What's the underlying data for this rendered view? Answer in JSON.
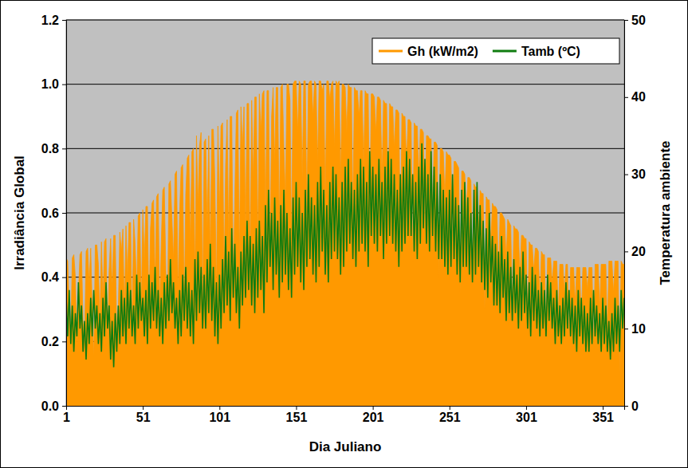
{
  "chart_data": {
    "type": "line",
    "xlabel": "Dia Juliano",
    "ylabel": "Irradiância Global",
    "y2label": "Temperatura ambiente",
    "xlim": [
      1,
      365
    ],
    "xticks": [
      1,
      51,
      101,
      151,
      201,
      251,
      301,
      351
    ],
    "ylim": [
      0,
      1.2
    ],
    "yticks": [
      {
        "value": 0,
        "label": "0.0"
      },
      0.2,
      0.4,
      0.6,
      0.8,
      {
        "value": 1,
        "label": "1.0"
      },
      1.2
    ],
    "y2lim": [
      0,
      50
    ],
    "y2ticks": [
      0,
      10,
      20,
      30,
      40,
      50
    ],
    "grid": true,
    "legend": "top-right",
    "x": [
      1,
      2,
      3,
      4,
      5,
      6,
      7,
      8,
      9,
      10,
      11,
      12,
      13,
      14,
      15,
      16,
      17,
      18,
      19,
      20,
      21,
      22,
      23,
      24,
      25,
      26,
      27,
      28,
      29,
      30,
      31,
      32,
      33,
      34,
      35,
      36,
      37,
      38,
      39,
      40,
      41,
      42,
      43,
      44,
      45,
      46,
      47,
      48,
      49,
      50,
      51,
      52,
      53,
      54,
      55,
      56,
      57,
      58,
      59,
      60,
      61,
      62,
      63,
      64,
      65,
      66,
      67,
      68,
      69,
      70,
      71,
      72,
      73,
      74,
      75,
      76,
      77,
      78,
      79,
      80,
      81,
      82,
      83,
      84,
      85,
      86,
      87,
      88,
      89,
      90,
      91,
      92,
      93,
      94,
      95,
      96,
      97,
      98,
      99,
      100,
      101,
      102,
      103,
      104,
      105,
      106,
      107,
      108,
      109,
      110,
      111,
      112,
      113,
      114,
      115,
      116,
      117,
      118,
      119,
      120,
      121,
      122,
      123,
      124,
      125,
      126,
      127,
      128,
      129,
      130,
      131,
      132,
      133,
      134,
      135,
      136,
      137,
      138,
      139,
      140,
      141,
      142,
      143,
      144,
      145,
      146,
      147,
      148,
      149,
      150,
      151,
      152,
      153,
      154,
      155,
      156,
      157,
      158,
      159,
      160,
      161,
      162,
      163,
      164,
      165,
      166,
      167,
      168,
      169,
      170,
      171,
      172,
      173,
      174,
      175,
      176,
      177,
      178,
      179,
      180,
      181,
      182,
      183,
      184,
      185,
      186,
      187,
      188,
      189,
      190,
      191,
      192,
      193,
      194,
      195,
      196,
      197,
      198,
      199,
      200,
      201,
      202,
      203,
      204,
      205,
      206,
      207,
      208,
      209,
      210,
      211,
      212,
      213,
      214,
      215,
      216,
      217,
      218,
      219,
      220,
      221,
      222,
      223,
      224,
      225,
      226,
      227,
      228,
      229,
      230,
      231,
      232,
      233,
      234,
      235,
      236,
      237,
      238,
      239,
      240,
      241,
      242,
      243,
      244,
      245,
      246,
      247,
      248,
      249,
      250,
      251,
      252,
      253,
      254,
      255,
      256,
      257,
      258,
      259,
      260,
      261,
      262,
      263,
      264,
      265,
      266,
      267,
      268,
      269,
      270,
      271,
      272,
      273,
      274,
      275,
      276,
      277,
      278,
      279,
      280,
      281,
      282,
      283,
      284,
      285,
      286,
      287,
      288,
      289,
      290,
      291,
      292,
      293,
      294,
      295,
      296,
      297,
      298,
      299,
      300,
      301,
      302,
      303,
      304,
      305,
      306,
      307,
      308,
      309,
      310,
      311,
      312,
      313,
      314,
      315,
      316,
      317,
      318,
      319,
      320,
      321,
      322,
      323,
      324,
      325,
      326,
      327,
      328,
      329,
      330,
      331,
      332,
      333,
      334,
      335,
      336,
      337,
      338,
      339,
      340,
      341,
      342,
      343,
      344,
      345,
      346,
      347,
      348,
      349,
      350,
      351,
      352,
      353,
      354,
      355,
      356,
      357,
      358,
      359,
      360,
      361,
      362,
      363,
      364,
      365
    ],
    "series": [
      {
        "name": "Gh (kW/m2)",
        "type": "area",
        "color": "#ff9900",
        "values": [
          0.46,
          0.45,
          0.3,
          0.22,
          0.46,
          0.47,
          0.4,
          0.18,
          0.35,
          0.47,
          0.48,
          0.26,
          0.2,
          0.48,
          0.49,
          0.38,
          0.49,
          0.3,
          0.15,
          0.5,
          0.5,
          0.44,
          0.25,
          0.51,
          0.32,
          0.51,
          0.52,
          0.2,
          0.42,
          0.52,
          0.36,
          0.53,
          0.53,
          0.22,
          0.3,
          0.54,
          0.48,
          0.55,
          0.28,
          0.56,
          0.4,
          0.57,
          0.57,
          0.24,
          0.58,
          0.5,
          0.35,
          0.59,
          0.6,
          0.3,
          0.61,
          0.45,
          0.62,
          0.62,
          0.28,
          0.55,
          0.63,
          0.64,
          0.38,
          0.65,
          0.66,
          0.3,
          0.5,
          0.67,
          0.68,
          0.42,
          0.25,
          0.69,
          0.7,
          0.58,
          0.45,
          0.72,
          0.73,
          0.35,
          0.6,
          0.74,
          0.75,
          0.3,
          0.66,
          0.77,
          0.78,
          0.5,
          0.79,
          0.8,
          0.4,
          0.84,
          0.62,
          0.81,
          0.85,
          0.3,
          0.82,
          0.83,
          0.55,
          0.84,
          0.45,
          0.86,
          0.86,
          0.7,
          0.35,
          0.87,
          0.6,
          0.87,
          0.88,
          0.4,
          0.75,
          0.89,
          0.5,
          0.9,
          0.9,
          0.38,
          0.65,
          0.91,
          0.92,
          0.45,
          0.93,
          0.8,
          0.93,
          0.55,
          0.94,
          0.94,
          0.42,
          0.95,
          0.7,
          0.96,
          0.96,
          0.5,
          0.97,
          0.85,
          0.97,
          0.98,
          0.6,
          0.98,
          0.98,
          0.45,
          0.9,
          0.99,
          0.75,
          0.99,
          0.99,
          0.55,
          0.99,
          1.0,
          0.8,
          0.65,
          1.0,
          1.0,
          0.95,
          0.5,
          1.0,
          1.01,
          1.01,
          0.85,
          1.01,
          1.0,
          0.7,
          1.01,
          1.01,
          0.6,
          1.0,
          1.01,
          1.01,
          0.9,
          1.01,
          1.0,
          0.75,
          1.01,
          1.01,
          0.98,
          1.0,
          0.65,
          1.01,
          1.01,
          0.95,
          1.0,
          1.01,
          0.8,
          1.01,
          1.0,
          1.01,
          0.7,
          1.0,
          1.0,
          0.99,
          0.85,
          1.0,
          0.99,
          0.99,
          0.6,
          0.99,
          0.98,
          0.98,
          0.9,
          0.98,
          0.98,
          0.75,
          0.98,
          0.97,
          0.97,
          0.55,
          0.97,
          0.97,
          0.96,
          0.85,
          0.96,
          0.96,
          0.95,
          0.7,
          0.95,
          0.94,
          0.94,
          0.6,
          0.94,
          0.93,
          0.93,
          0.8,
          0.92,
          0.92,
          0.91,
          0.5,
          0.91,
          0.9,
          0.9,
          0.75,
          0.89,
          0.89,
          0.88,
          0.45,
          0.88,
          0.87,
          0.87,
          0.7,
          0.86,
          0.86,
          0.85,
          0.55,
          0.84,
          0.84,
          0.83,
          0.83,
          0.6,
          0.82,
          0.82,
          0.81,
          0.4,
          0.8,
          0.8,
          0.79,
          0.65,
          0.79,
          0.78,
          0.78,
          0.77,
          0.5,
          0.76,
          0.76,
          0.75,
          0.74,
          0.35,
          0.73,
          0.73,
          0.72,
          0.6,
          0.71,
          0.71,
          0.7,
          0.4,
          0.69,
          0.68,
          0.68,
          0.55,
          0.67,
          0.66,
          0.66,
          0.3,
          0.65,
          0.64,
          0.64,
          0.5,
          0.63,
          0.62,
          0.62,
          0.61,
          0.38,
          0.6,
          0.6,
          0.59,
          0.58,
          0.45,
          0.58,
          0.57,
          0.56,
          0.3,
          0.56,
          0.55,
          0.55,
          0.54,
          0.4,
          0.53,
          0.53,
          0.52,
          0.52,
          0.25,
          0.51,
          0.5,
          0.5,
          0.42,
          0.49,
          0.49,
          0.48,
          0.32,
          0.48,
          0.47,
          0.47,
          0.22,
          0.46,
          0.46,
          0.46,
          0.38,
          0.45,
          0.45,
          0.45,
          0.28,
          0.44,
          0.44,
          0.44,
          0.35,
          0.44,
          0.44,
          0.2,
          0.43,
          0.43,
          0.43,
          0.32,
          0.43,
          0.43,
          0.43,
          0.25,
          0.43,
          0.43,
          0.43,
          0.36,
          0.43,
          0.43,
          0.43,
          0.18,
          0.44,
          0.44,
          0.44,
          0.3,
          0.44,
          0.44,
          0.44,
          0.44,
          0.22,
          0.45,
          0.45,
          0.45,
          0.35,
          0.45,
          0.45,
          0.45,
          0.1,
          0.45,
          0.44,
          0.44
        ]
      },
      {
        "name": "Tamb (ºC)",
        "type": "line",
        "color": "#107c10",
        "axis": "y2",
        "values": [
          14,
          9,
          15,
          8,
          13,
          7,
          12,
          9,
          16,
          10,
          13,
          7,
          11,
          6,
          12,
          8,
          14,
          9,
          15,
          10,
          13,
          8,
          12,
          7,
          14,
          9,
          16,
          10,
          13,
          6,
          11,
          5,
          12,
          7,
          13,
          8,
          15,
          9,
          14,
          8,
          16,
          10,
          15,
          9,
          13,
          8,
          17,
          10,
          16,
          11,
          14,
          9,
          15,
          8,
          17,
          10,
          16,
          11,
          18,
          10,
          15,
          9,
          14,
          8,
          16,
          10,
          17,
          11,
          19,
          12,
          16,
          10,
          14,
          8,
          15,
          9,
          17,
          11,
          18,
          10,
          16,
          9,
          15,
          8,
          19,
          11,
          20,
          12,
          18,
          10,
          17,
          10,
          19,
          12,
          21,
          11,
          18,
          9,
          16,
          8,
          17,
          10,
          19,
          12,
          22,
          13,
          20,
          11,
          23,
          14,
          21,
          12,
          18,
          10,
          20,
          13,
          22,
          14,
          24,
          15,
          22,
          13,
          21,
          12,
          23,
          14,
          24,
          15,
          22,
          12,
          26,
          16,
          28,
          18,
          25,
          15,
          27,
          17,
          24,
          14,
          26,
          16,
          28,
          17,
          25,
          15,
          23,
          14,
          27,
          17,
          29,
          18,
          27,
          16,
          25,
          15,
          28,
          18,
          30,
          19,
          27,
          17,
          26,
          16,
          29,
          18,
          31,
          20,
          28,
          17,
          26,
          16,
          29,
          19,
          31,
          20,
          30,
          19,
          27,
          17,
          29,
          18,
          31,
          20,
          32,
          21,
          29,
          19,
          28,
          18,
          30,
          20,
          32,
          21,
          31,
          20,
          29,
          18,
          33,
          22,
          31,
          21,
          30,
          20,
          32,
          22,
          29,
          19,
          31,
          21,
          33,
          22,
          32,
          21,
          30,
          20,
          28,
          18,
          30,
          20,
          31,
          21,
          33,
          22,
          32,
          22,
          30,
          20,
          29,
          19,
          31,
          21,
          34,
          23,
          32,
          21,
          30,
          20,
          33,
          22,
          31,
          20,
          29,
          19,
          30,
          19,
          28,
          18,
          27,
          17,
          28,
          18,
          30,
          19,
          27,
          17,
          26,
          16,
          28,
          18,
          29,
          18,
          27,
          17,
          25,
          16,
          28,
          17,
          29,
          18,
          26,
          16,
          24,
          15,
          23,
          14,
          25,
          16,
          22,
          13,
          21,
          13,
          20,
          12,
          22,
          14,
          19,
          11,
          20,
          12,
          18,
          11,
          19,
          12,
          17,
          10,
          18,
          11,
          20,
          12,
          17,
          10,
          16,
          9,
          18,
          11,
          17,
          10,
          15,
          9,
          16,
          10,
          15,
          9,
          17,
          11,
          16,
          10,
          14,
          8,
          15,
          9,
          13,
          8,
          14,
          9,
          16,
          10,
          15,
          9,
          14,
          8,
          13,
          7,
          15,
          9,
          14,
          8,
          13,
          7,
          12,
          7,
          14,
          8,
          15,
          9,
          13,
          8,
          12,
          7,
          14,
          8,
          13,
          7,
          11,
          6,
          12,
          7,
          14,
          8,
          13,
          7,
          15,
          10,
          14
        ]
      }
    ]
  }
}
